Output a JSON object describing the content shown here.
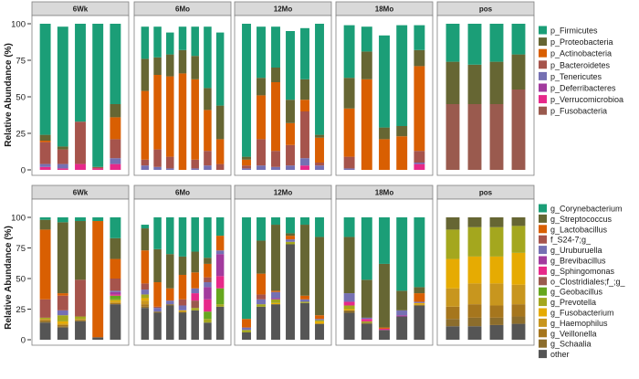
{
  "chart_data": [
    {
      "type": "stacked-bar",
      "title": "",
      "ylabel": "Relative Abundance (%)",
      "ylim": [
        0,
        100
      ],
      "yticks": [
        0,
        25,
        50,
        75,
        100
      ],
      "grid": false,
      "legend_placement": "right",
      "panels": [
        "6Wk",
        "6Mo",
        "12Mo",
        "18Mo",
        "pos"
      ],
      "series": [
        {
          "name": "p_Firmicutes",
          "color": "#1b9e77"
        },
        {
          "name": "p_Proteobacteria",
          "color": "#666633"
        },
        {
          "name": "p_Actinobacteria",
          "color": "#d95f02"
        },
        {
          "name": "p_Bacteroidetes",
          "color": "#a6544c"
        },
        {
          "name": "p_Tenericutes",
          "color": "#7570b3"
        },
        {
          "name": "p_Deferribacteres",
          "color": "#a23b9e"
        },
        {
          "name": "p_Verrucomicrobioa",
          "color": "#e7298a"
        },
        {
          "name": "p_Fusobacteria",
          "color": "#9a5a4e"
        }
      ],
      "bars": [
        [
          [
            76,
            4,
            1,
            15,
            2,
            0,
            2,
            0
          ],
          [
            82,
            2,
            0,
            10,
            3,
            0,
            1,
            0
          ],
          [
            67,
            0,
            0,
            29,
            0,
            0,
            4,
            0
          ],
          [
            98,
            0,
            0,
            1,
            0,
            0,
            1,
            0
          ],
          [
            55,
            9,
            15,
            13,
            4,
            0,
            4,
            0
          ]
        ],
        [
          [
            22,
            22,
            47,
            4,
            3,
            0,
            0,
            0
          ],
          [
            21,
            12,
            51,
            12,
            2,
            0,
            0,
            0
          ],
          [
            15,
            15,
            55,
            8,
            1,
            0,
            0,
            0
          ],
          [
            16,
            16,
            66,
            0,
            0,
            0,
            0,
            0
          ],
          [
            20,
            16,
            55,
            6,
            1,
            0,
            0,
            0
          ],
          [
            42,
            15,
            28,
            10,
            3,
            0,
            0,
            0
          ],
          [
            50,
            23,
            17,
            4,
            0,
            0,
            0,
            0
          ]
        ],
        [
          [
            91,
            2,
            4,
            2,
            1,
            0,
            0,
            0
          ],
          [
            35,
            12,
            30,
            18,
            3,
            0,
            0,
            0
          ],
          [
            28,
            10,
            47,
            11,
            2,
            0,
            0,
            0
          ],
          [
            47,
            16,
            15,
            14,
            3,
            0,
            0,
            0
          ],
          [
            35,
            14,
            8,
            32,
            5,
            0,
            3,
            0
          ],
          [
            76,
            2,
            17,
            2,
            3,
            0,
            0,
            0
          ]
        ],
        [
          [
            36,
            21,
            33,
            8,
            1,
            0,
            0,
            0
          ],
          [
            17,
            19,
            62,
            0,
            0,
            0,
            0,
            0
          ],
          [
            63,
            8,
            21,
            0,
            0,
            0,
            0,
            0
          ],
          [
            69,
            7,
            23,
            0,
            0,
            0,
            0,
            0
          ],
          [
            17,
            11,
            58,
            8,
            1,
            0,
            4,
            0
          ]
        ],
        [
          [
            26,
            29,
            0,
            0,
            0,
            0,
            0,
            45
          ],
          [
            28,
            27,
            0,
            0,
            0,
            0,
            0,
            45
          ],
          [
            26,
            29,
            0,
            0,
            0,
            0,
            0,
            45
          ],
          [
            21,
            24,
            0,
            0,
            0,
            0,
            0,
            55
          ]
        ]
      ]
    },
    {
      "type": "stacked-bar",
      "title": "",
      "ylabel": "Relative Abundance (%)",
      "ylim": [
        0,
        100
      ],
      "yticks": [
        0,
        25,
        50,
        75,
        100
      ],
      "grid": false,
      "legend_placement": "right",
      "panels": [
        "6Wk",
        "6Mo",
        "12Mo",
        "18Mo",
        "pos"
      ],
      "series": [
        {
          "name": "g_Corynebacterium",
          "color": "#1b9e77"
        },
        {
          "name": "g_Streptococcus",
          "color": "#666633"
        },
        {
          "name": "g_Lactobacillus",
          "color": "#d95f02"
        },
        {
          "name": "f_S24-7;g_",
          "color": "#a6544c"
        },
        {
          "name": "g_Uruburuella",
          "color": "#7570b3"
        },
        {
          "name": "g_Brevibacillus",
          "color": "#a23b9e"
        },
        {
          "name": "g_Sphingomonas",
          "color": "#e7298a"
        },
        {
          "name": "o_Clostridiales;f_;g_",
          "color": "#9a5a4e"
        },
        {
          "name": "g_Geobacillus",
          "color": "#66a61e"
        },
        {
          "name": "g_Prevotella",
          "color": "#a4a71e"
        },
        {
          "name": "g_Fusobacterium",
          "color": "#e6ab02"
        },
        {
          "name": "g_Haemophilus",
          "color": "#c8961e"
        },
        {
          "name": "g_Veillonella",
          "color": "#a6761d"
        },
        {
          "name": "g_Schaalia",
          "color": "#8c6d2c"
        },
        {
          "name": "other",
          "color": "#555555"
        }
      ],
      "bars": [
        [
          [
            2,
            8,
            57,
            15,
            0,
            0,
            0,
            0,
            0,
            1,
            0,
            1,
            1,
            1,
            14
          ],
          [
            4,
            58,
            2,
            12,
            4,
            0,
            0,
            0,
            0,
            5,
            2,
            1,
            1,
            1,
            10
          ],
          [
            3,
            48,
            0,
            30,
            0,
            0,
            0,
            0,
            0,
            2,
            0,
            1,
            0,
            1,
            15
          ],
          [
            3,
            0,
            95,
            0,
            0,
            0,
            0,
            0,
            0,
            0,
            0,
            0,
            0,
            0,
            2
          ],
          [
            17,
            17,
            16,
            10,
            1,
            2,
            1,
            0,
            3,
            1,
            1,
            1,
            1,
            0,
            29
          ]
        ],
        [
          [
            3,
            18,
            27,
            5,
            4,
            0,
            0,
            0,
            0,
            3,
            2,
            3,
            2,
            1,
            26
          ],
          [
            26,
            27,
            20,
            1,
            3,
            0,
            0,
            0,
            0,
            0,
            0,
            0,
            0,
            1,
            22
          ],
          [
            30,
            28,
            10,
            0,
            3,
            0,
            0,
            0,
            0,
            0,
            0,
            0,
            0,
            1,
            28
          ],
          [
            32,
            15,
            20,
            5,
            4,
            0,
            0,
            0,
            0,
            0,
            1,
            0,
            0,
            1,
            22
          ],
          [
            28,
            17,
            13,
            0,
            4,
            0,
            6,
            6,
            0,
            2,
            0,
            0,
            0,
            0,
            24
          ],
          [
            33,
            5,
            11,
            4,
            4,
            10,
            10,
            0,
            6,
            3,
            0,
            0,
            0,
            0,
            14
          ],
          [
            15,
            0,
            12,
            0,
            3,
            18,
            10,
            0,
            13,
            2,
            0,
            0,
            0,
            0,
            27
          ]
        ],
        [
          [
            83,
            0,
            7,
            0,
            2,
            0,
            0,
            0,
            0,
            2,
            0,
            0,
            0,
            0,
            6
          ],
          [
            19,
            27,
            17,
            4,
            4,
            0,
            0,
            0,
            0,
            2,
            0,
            0,
            0,
            0,
            27
          ],
          [
            6,
            54,
            1,
            0,
            5,
            1,
            0,
            0,
            0,
            3,
            1,
            0,
            0,
            0,
            29
          ],
          [
            13,
            2,
            3,
            0,
            2,
            0,
            0,
            0,
            0,
            2,
            0,
            0,
            0,
            0,
            78
          ],
          [
            6,
            58,
            3,
            0,
            2,
            0,
            0,
            0,
            0,
            1,
            0,
            0,
            0,
            0,
            30
          ],
          [
            16,
            64,
            3,
            0,
            1,
            0,
            0,
            0,
            0,
            1,
            2,
            0,
            0,
            0,
            13
          ]
        ],
        [
          [
            16,
            46,
            0,
            0,
            7,
            0,
            3,
            0,
            0,
            3,
            1,
            0,
            0,
            2,
            22
          ],
          [
            51,
            31,
            0,
            0,
            1,
            0,
            2,
            0,
            0,
            1,
            0,
            0,
            0,
            1,
            13
          ],
          [
            38,
            52,
            1,
            0,
            0,
            0,
            1,
            0,
            0,
            0,
            0,
            0,
            0,
            0,
            8
          ],
          [
            60,
            16,
            0,
            0,
            4,
            1,
            0,
            0,
            0,
            0,
            0,
            0,
            0,
            0,
            19
          ],
          [
            57,
            5,
            7,
            0,
            1,
            0,
            0,
            0,
            0,
            0,
            1,
            1,
            0,
            0,
            28
          ]
        ],
        [
          [
            0,
            10,
            0,
            0,
            0,
            0,
            0,
            0,
            0,
            24,
            24,
            15,
            10,
            6,
            11
          ],
          [
            0,
            8,
            0,
            0,
            0,
            0,
            0,
            0,
            0,
            24,
            22,
            17,
            11,
            7,
            11
          ],
          [
            0,
            8,
            0,
            0,
            0,
            0,
            0,
            0,
            0,
            24,
            22,
            18,
            10,
            6,
            12
          ],
          [
            0,
            7,
            0,
            0,
            0,
            0,
            0,
            0,
            0,
            22,
            26,
            16,
            10,
            6,
            13
          ]
        ]
      ]
    }
  ]
}
